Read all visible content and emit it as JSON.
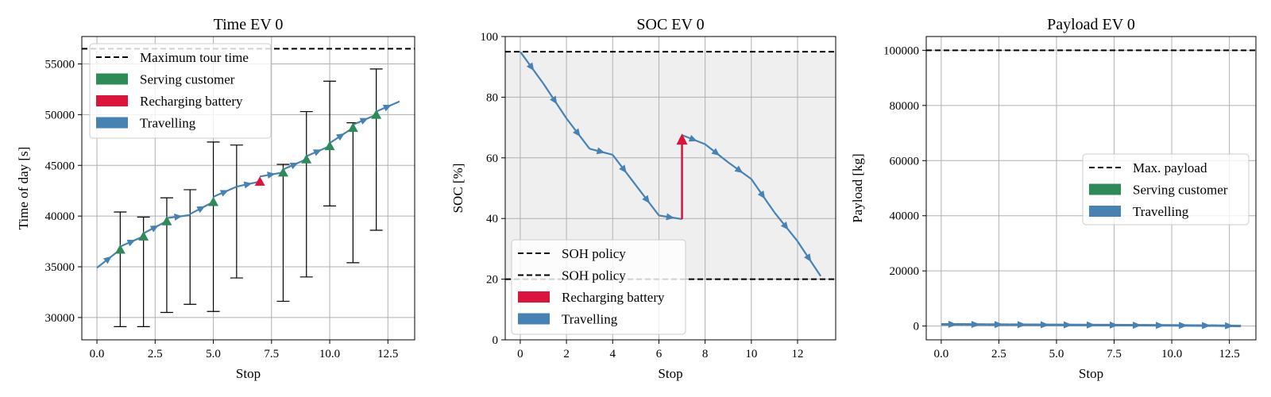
{
  "colors": {
    "travel": "#4682b4",
    "serving": "#2e8b57",
    "recharge": "#dc143c",
    "grid": "#b0b0b0",
    "bound": "#000000",
    "shade": "#efefef",
    "errorbar": "#000000"
  },
  "chart_data": [
    {
      "type": "line",
      "title": "Time EV 0",
      "xlabel": "Stop",
      "ylabel": "Time of day [s]",
      "xlim": [
        -0.65,
        13.65
      ],
      "ylim": [
        27800,
        57700
      ],
      "xticks": [
        0,
        2.5,
        5,
        7.5,
        10,
        12.5
      ],
      "xtick_labels": [
        "0.0",
        "2.5",
        "5.0",
        "7.5",
        "10.0",
        "12.5"
      ],
      "yticks": [
        30000,
        35000,
        40000,
        45000,
        50000,
        55000
      ],
      "ytick_labels": [
        "30000",
        "35000",
        "40000",
        "45000",
        "50000",
        "55000"
      ],
      "grid": true,
      "legend_position": "upper-left",
      "hlines": [
        {
          "label": "Maximum tour time",
          "y": 56500
        }
      ],
      "legend": [
        {
          "label": "Maximum tour time",
          "kind": "dashed"
        },
        {
          "label": "Serving customer",
          "kind": "serving"
        },
        {
          "label": "Recharging battery",
          "kind": "recharge"
        },
        {
          "label": "Travelling",
          "kind": "travel"
        }
      ],
      "arrival": [
        34900,
        36700,
        38000,
        39500,
        40100,
        41400,
        42900,
        43400,
        44300,
        45600,
        46900,
        48700,
        50000,
        null
      ],
      "departure": [
        34900,
        37000,
        38300,
        39800,
        40200,
        41900,
        42900,
        43900,
        44600,
        45900,
        47200,
        49000,
        50300,
        51300
      ],
      "time_window_low": [
        null,
        29100,
        29100,
        30500,
        31300,
        30600,
        33900,
        null,
        31600,
        34000,
        41000,
        35400,
        38600,
        null
      ],
      "time_window_high": [
        null,
        40400,
        39900,
        41800,
        42600,
        47300,
        47000,
        null,
        45100,
        50300,
        53300,
        49200,
        54500,
        null
      ],
      "service_stops": [
        1,
        2,
        3,
        5,
        8,
        9,
        10,
        11,
        12
      ],
      "recharge_stops": [
        7
      ]
    },
    {
      "type": "line",
      "title": "SOC EV 0",
      "xlabel": "Stop",
      "ylabel": "SOC [%]",
      "xlim": [
        -0.65,
        13.65
      ],
      "ylim": [
        0,
        100
      ],
      "xticks": [
        0,
        2,
        4,
        6,
        8,
        10,
        12
      ],
      "xtick_labels": [
        "0",
        "2",
        "4",
        "6",
        "8",
        "10",
        "12"
      ],
      "yticks": [
        0,
        20,
        40,
        60,
        80,
        100
      ],
      "ytick_labels": [
        "0",
        "20",
        "40",
        "60",
        "80",
        "100"
      ],
      "grid": true,
      "legend_position": "lower-left",
      "hlines": [
        {
          "label": "SOH policy",
          "y": 95
        },
        {
          "label": "SOH policy",
          "y": 20
        }
      ],
      "shade_between": [
        20,
        95
      ],
      "legend": [
        {
          "label": "SOH policy",
          "kind": "dashed"
        },
        {
          "label": "SOH policy",
          "kind": "dashed"
        },
        {
          "label": "Recharging battery",
          "kind": "recharge"
        },
        {
          "label": "Travelling",
          "kind": "travel"
        }
      ],
      "x": [
        0,
        1,
        2,
        3,
        4,
        5,
        6,
        7,
        8,
        9,
        10,
        11,
        12,
        13
      ],
      "arrival": [
        95,
        84.5,
        73,
        63,
        61,
        51,
        41,
        39.8,
        64.5,
        58.5,
        53,
        42,
        32.5,
        21
      ],
      "departure": [
        95,
        84.5,
        73,
        63,
        61,
        51,
        41,
        67.5,
        64.5,
        58.5,
        53,
        42,
        32.5,
        21
      ],
      "recharge_stops": [
        7
      ]
    },
    {
      "type": "line",
      "title": "Payload EV 0",
      "xlabel": "Stop",
      "ylabel": "Payload [kg]",
      "xlim": [
        -0.65,
        13.65
      ],
      "ylim": [
        -5000,
        105000
      ],
      "xticks": [
        0,
        2.5,
        5,
        7.5,
        10,
        12.5
      ],
      "xtick_labels": [
        "0.0",
        "2.5",
        "5.0",
        "7.5",
        "10.0",
        "12.5"
      ],
      "yticks": [
        0,
        20000,
        40000,
        60000,
        80000,
        100000
      ],
      "ytick_labels": [
        "0",
        "20000",
        "40000",
        "60000",
        "80000",
        "100000"
      ],
      "grid": true,
      "legend_position": "center-right",
      "hlines": [
        {
          "label": "Max. payload",
          "y": 100000
        }
      ],
      "legend": [
        {
          "label": "Max. payload",
          "kind": "dashed"
        },
        {
          "label": "Serving customer",
          "kind": "serving"
        },
        {
          "label": "Travelling",
          "kind": "travel"
        }
      ],
      "x": [
        0,
        1,
        2,
        3,
        4,
        5,
        6,
        7,
        8,
        9,
        10,
        11,
        12,
        13
      ],
      "values": [
        600,
        600,
        560,
        520,
        480,
        440,
        400,
        360,
        320,
        280,
        240,
        200,
        150,
        0
      ]
    }
  ]
}
